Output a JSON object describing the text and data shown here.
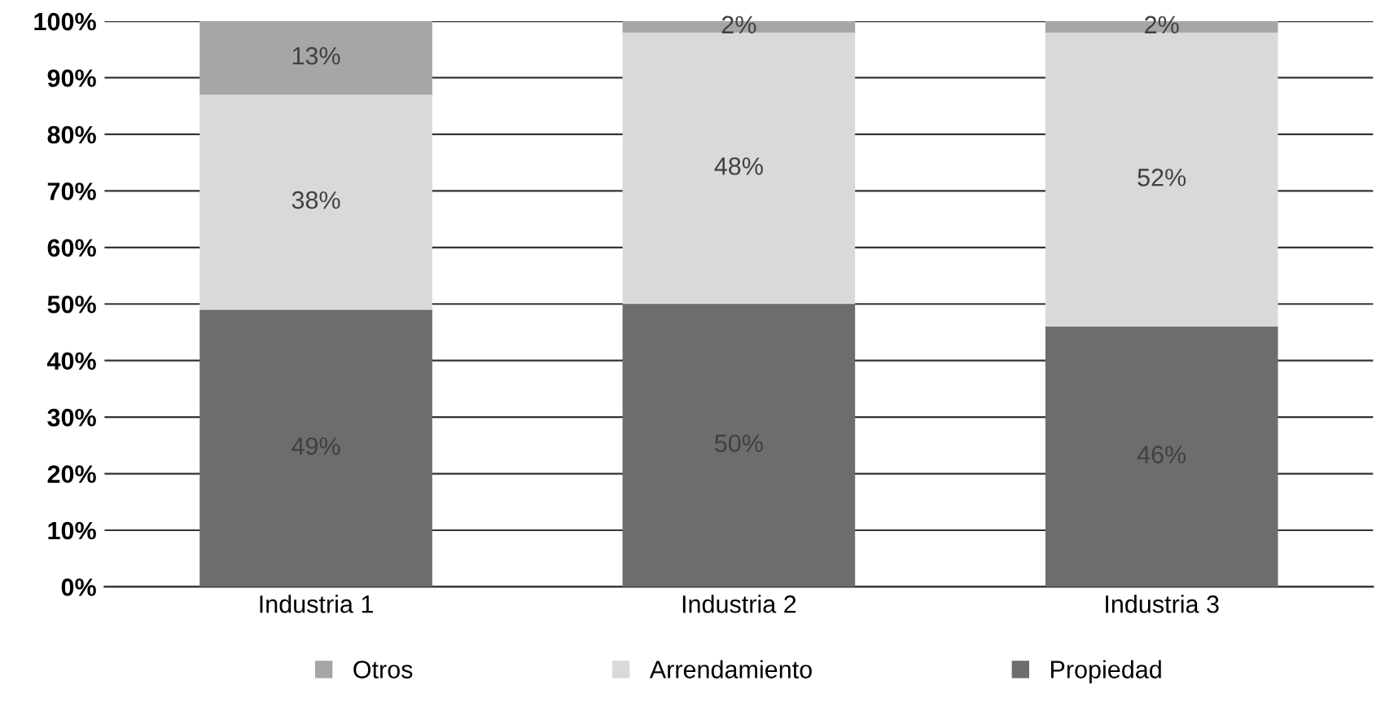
{
  "chart_data": {
    "type": "bar",
    "stacked": true,
    "categories": [
      "Industria 1",
      "Industria 2",
      "Industria 3"
    ],
    "series": [
      {
        "name": "Propiedad",
        "color": "#6d6d6d",
        "values": [
          49,
          50,
          46
        ],
        "value_labels": [
          "49%",
          "50%",
          "46%"
        ]
      },
      {
        "name": "Arrendamiento",
        "color": "#d9d9d9",
        "values": [
          38,
          48,
          52
        ],
        "value_labels": [
          "38%",
          "48%",
          "52%"
        ]
      },
      {
        "name": "Otros",
        "color": "#a6a6a6",
        "values": [
          13,
          2,
          2
        ],
        "value_labels": [
          "13%",
          "2%",
          "2%"
        ]
      }
    ],
    "ylim": [
      0,
      100
    ],
    "yticks": [
      {
        "value": 0,
        "label": "0%"
      },
      {
        "value": 10,
        "label": "10%"
      },
      {
        "value": 20,
        "label": "20%"
      },
      {
        "value": 30,
        "label": "30%"
      },
      {
        "value": 40,
        "label": "40%"
      },
      {
        "value": 50,
        "label": "50%"
      },
      {
        "value": 60,
        "label": "60%"
      },
      {
        "value": 70,
        "label": "70%"
      },
      {
        "value": 80,
        "label": "80%"
      },
      {
        "value": 90,
        "label": "90%"
      },
      {
        "value": 100,
        "label": "100%"
      }
    ],
    "grid": "y",
    "legend": "bottom"
  }
}
